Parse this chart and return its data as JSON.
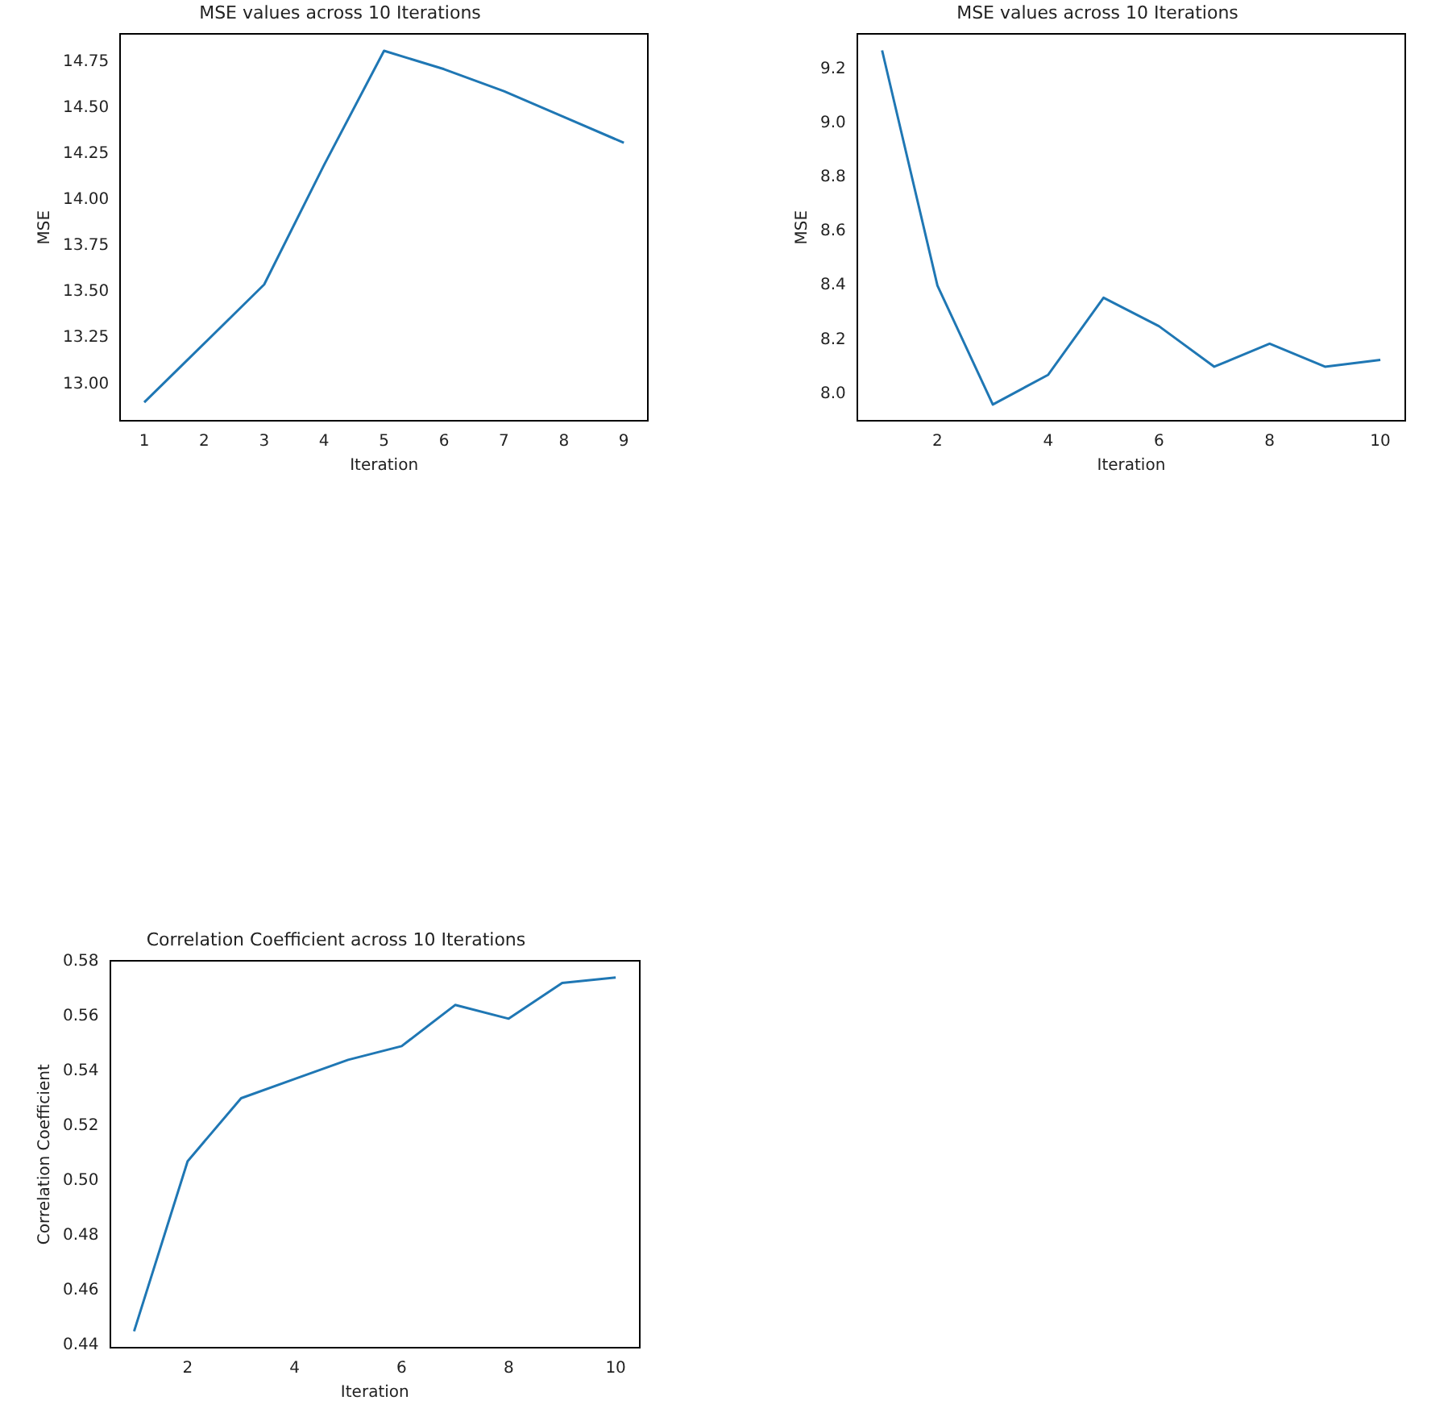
{
  "chart_data": [
    {
      "type": "line",
      "title": "MSE values across 10 Iterations",
      "xlabel": "Iteration",
      "ylabel": "MSE",
      "x": [
        1,
        2,
        3,
        4,
        5,
        6,
        7,
        8,
        9
      ],
      "series": [
        {
          "color": "#1f77b4",
          "values": [
            12.9,
            13.22,
            13.54,
            14.19,
            14.81,
            14.71,
            14.59,
            14.45,
            14.31
          ]
        }
      ],
      "xlim": [
        0.6,
        9.4
      ],
      "xticks": [
        1,
        2,
        3,
        4,
        5,
        6,
        7,
        8,
        9
      ],
      "ylim": [
        12.8,
        14.9
      ],
      "yticks": [
        {
          "value": 13,
          "label": "13.00"
        },
        {
          "value": 13.25,
          "label": "13.25"
        },
        {
          "value": 13.5,
          "label": "13.50"
        },
        {
          "value": 13.75,
          "label": "13.75"
        },
        {
          "value": 14,
          "label": "14.00"
        },
        {
          "value": 14.25,
          "label": "14.25"
        },
        {
          "value": 14.5,
          "label": "14.50"
        },
        {
          "value": 14.75,
          "label": "14.75"
        }
      ]
    },
    {
      "type": "line",
      "title": "MSE values across 10 Iterations",
      "xlabel": "Iteration",
      "ylabel": "MSE",
      "x": [
        1,
        2,
        3,
        4,
        5,
        6,
        7,
        8,
        9,
        10
      ],
      "series": [
        {
          "color": "#1f77b4",
          "values": [
            9.27,
            8.4,
            7.96,
            8.07,
            8.355,
            8.25,
            8.1,
            8.185,
            8.1,
            8.125
          ]
        }
      ],
      "xlim": [
        0.55,
        10.45
      ],
      "xticks": [
        2,
        4,
        6,
        8,
        10
      ],
      "ylim": [
        7.9,
        9.33
      ],
      "yticks": [
        {
          "value": 8,
          "label": "8.0"
        },
        {
          "value": 8.2,
          "label": "8.2"
        },
        {
          "value": 8.4,
          "label": "8.4"
        },
        {
          "value": 8.6,
          "label": "8.6"
        },
        {
          "value": 8.8,
          "label": "8.8"
        },
        {
          "value": 9,
          "label": "9.0"
        },
        {
          "value": 9.2,
          "label": "9.2"
        }
      ]
    },
    {
      "type": "line",
      "title": "Correlation Coefficient across 10 Iterations",
      "xlabel": "Iteration",
      "ylabel": "Correlation Coefficient",
      "x": [
        1,
        2,
        3,
        4,
        5,
        6,
        7,
        8,
        9,
        10
      ],
      "series": [
        {
          "color": "#1f77b4",
          "values": [
            0.445,
            0.507,
            0.53,
            0.537,
            0.544,
            0.549,
            0.564,
            0.559,
            0.572,
            0.574
          ]
        }
      ],
      "xlim": [
        0.55,
        10.45
      ],
      "xticks": [
        2,
        4,
        6,
        8,
        10
      ],
      "ylim": [
        0.439,
        0.58
      ],
      "yticks": [
        {
          "value": 0.44,
          "label": "0.44"
        },
        {
          "value": 0.46,
          "label": "0.46"
        },
        {
          "value": 0.48,
          "label": "0.48"
        },
        {
          "value": 0.5,
          "label": "0.50"
        },
        {
          "value": 0.52,
          "label": "0.52"
        },
        {
          "value": 0.54,
          "label": "0.54"
        },
        {
          "value": 0.56,
          "label": "0.56"
        },
        {
          "value": 0.58,
          "label": "0.58"
        }
      ]
    }
  ]
}
